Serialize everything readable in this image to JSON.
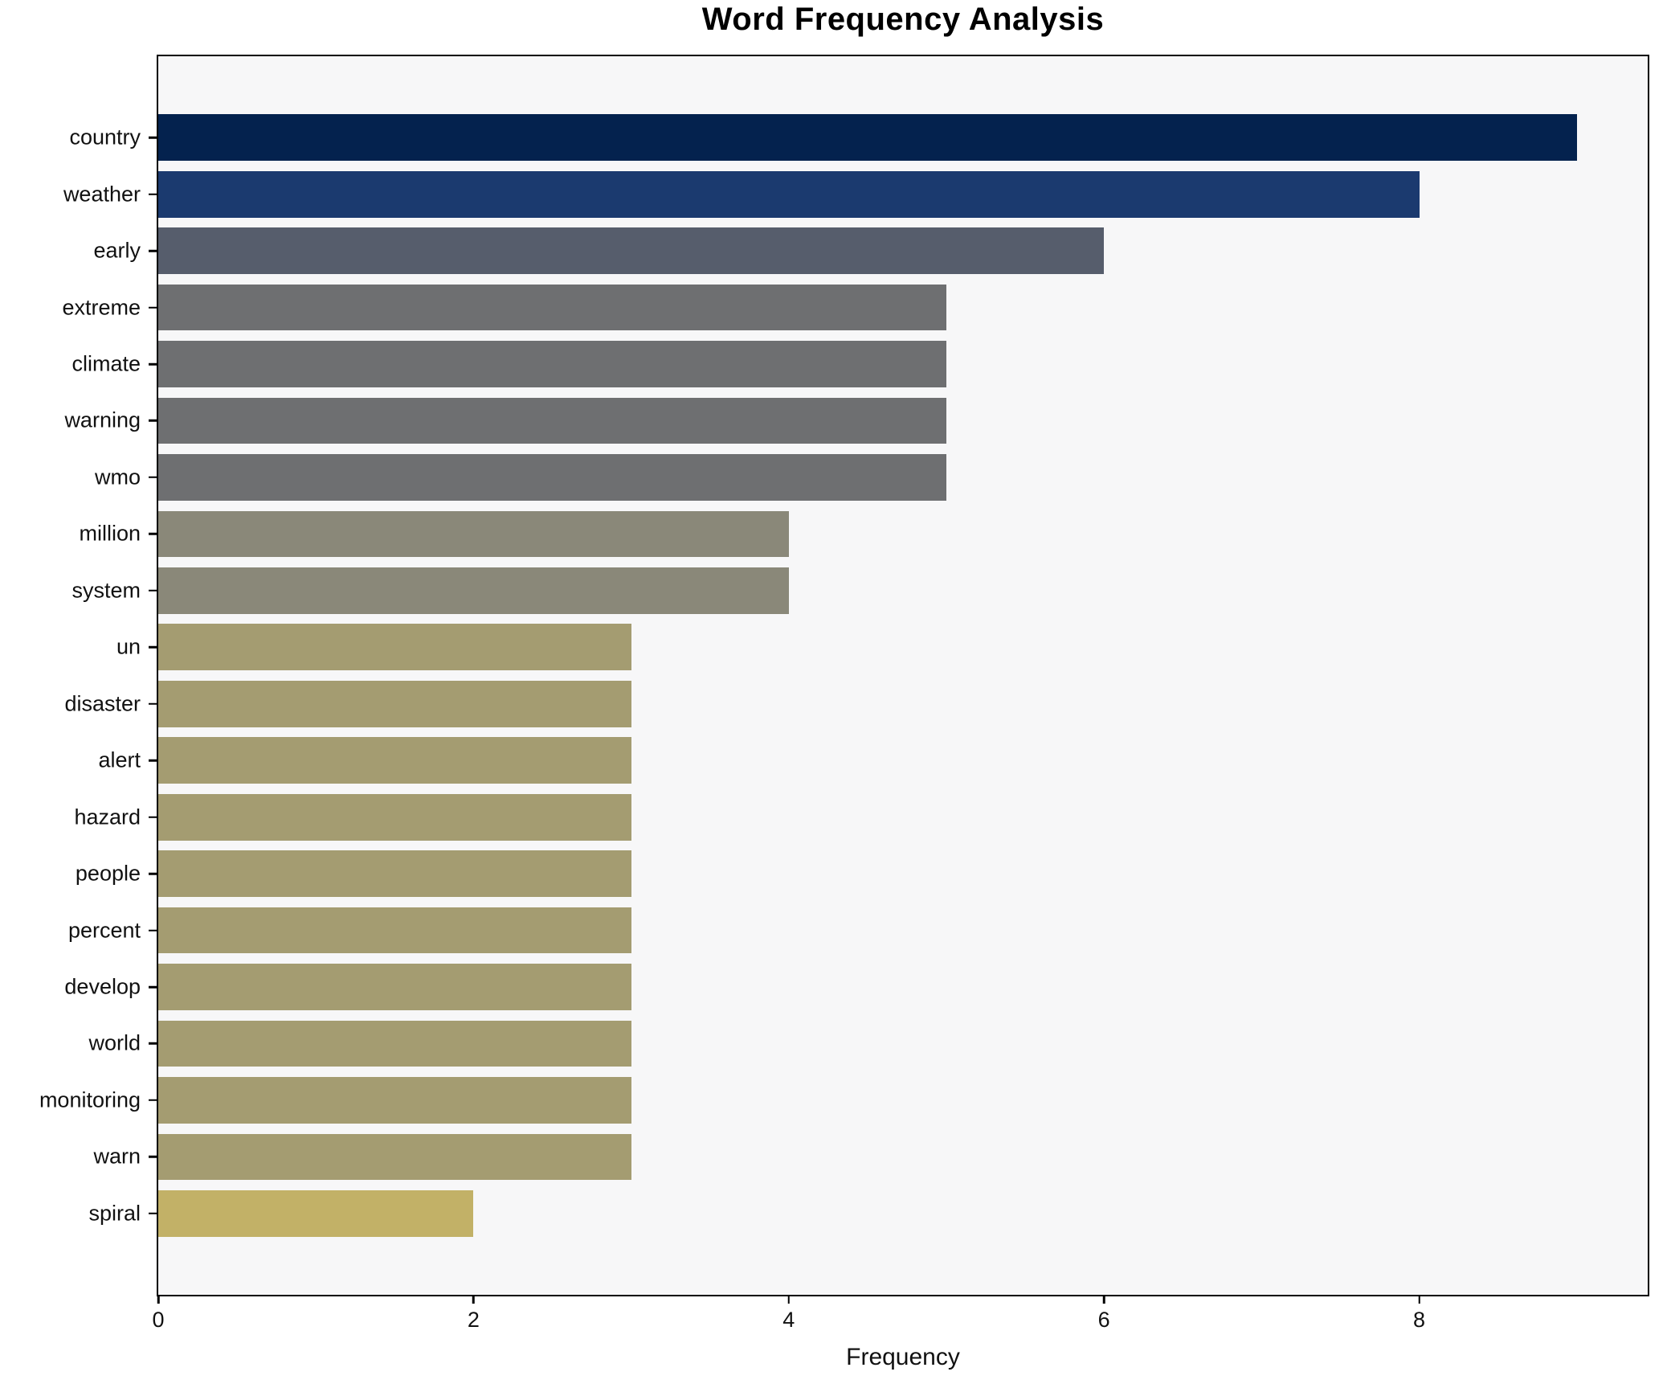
{
  "title": "Word Frequency Analysis",
  "chart_data": {
    "type": "bar",
    "orientation": "horizontal",
    "title": "Word Frequency Analysis",
    "xlabel": "Frequency",
    "ylabel": "",
    "categories": [
      "country",
      "weather",
      "early",
      "extreme",
      "climate",
      "warning",
      "wmo",
      "million",
      "system",
      "un",
      "disaster",
      "alert",
      "hazard",
      "people",
      "percent",
      "develop",
      "world",
      "monitoring",
      "warn",
      "spiral"
    ],
    "values": [
      9,
      8,
      6,
      5,
      5,
      5,
      5,
      4,
      4,
      3,
      3,
      3,
      3,
      3,
      3,
      3,
      3,
      3,
      3,
      2
    ],
    "bar_colors": [
      "#04224e",
      "#1b3a6f",
      "#565d6c",
      "#6e6f71",
      "#6e6f71",
      "#6e6f71",
      "#6e6f71",
      "#8a8879",
      "#8a8879",
      "#a49c71",
      "#a49c71",
      "#a49c71",
      "#a49c71",
      "#a49c71",
      "#a49c71",
      "#a49c71",
      "#a49c71",
      "#a49c71",
      "#a49c71",
      "#c2b167"
    ],
    "xticks": [
      0,
      2,
      4,
      6,
      8
    ],
    "xlim": [
      0,
      9.45
    ],
    "grid": false,
    "legend_position": "none",
    "plot_background": "#f7f7f8",
    "page_background": "#ffffff",
    "spine_color": "#000000",
    "text_color": "#111111"
  }
}
